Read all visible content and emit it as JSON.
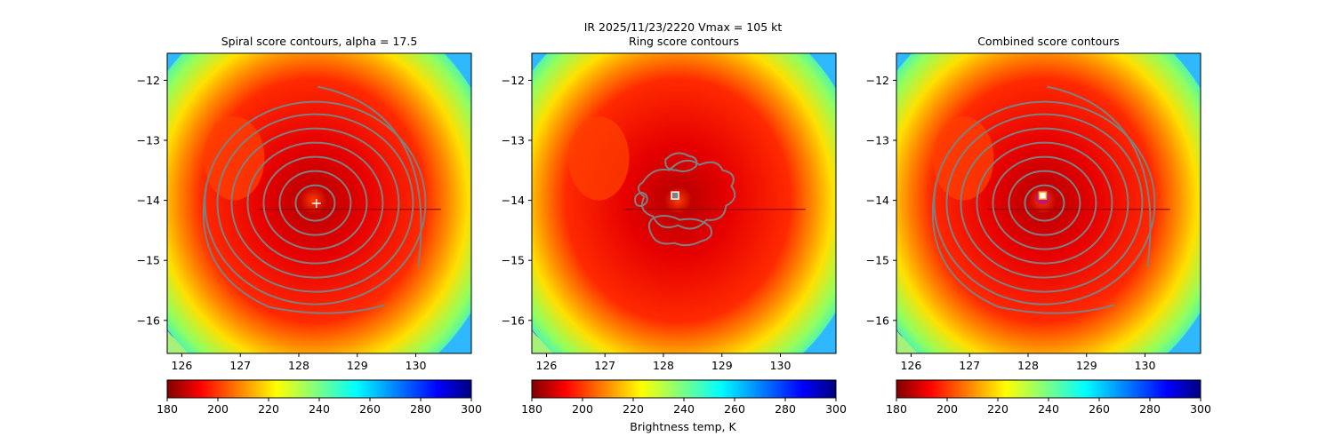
{
  "suptitle": "IR  2025/11/23/2220    Vmax = 105 kt",
  "colorbar_label": "Brightness temp, K",
  "chart_data": [
    {
      "type": "heatmap",
      "title": "Spiral score contours, alpha = 17.5",
      "xlim": [
        125.75,
        130.95
      ],
      "ylim": [
        -16.55,
        -11.55
      ],
      "xticks": [
        "126",
        "127",
        "128",
        "129",
        "130"
      ],
      "yticks": [
        "−12",
        "−13",
        "−14",
        "−15",
        "−16"
      ],
      "xtick_values": [
        126,
        127,
        128,
        129,
        130
      ],
      "ytick_values": [
        -12,
        -13,
        -14,
        -15,
        -16
      ],
      "center_marker": {
        "symbol": "+",
        "color": "#ffffff",
        "x": 128.3,
        "y": -14.05
      },
      "colorbar": {
        "min": 180,
        "max": 300,
        "ticks": [
          "180",
          "200",
          "220",
          "240",
          "260",
          "280",
          "300"
        ]
      },
      "field": "brightness_temperature_K",
      "contours": "spiral"
    },
    {
      "type": "heatmap",
      "title": "Ring score contours",
      "xlim": [
        125.75,
        130.95
      ],
      "ylim": [
        -16.55,
        -11.55
      ],
      "xticks": [
        "126",
        "127",
        "128",
        "129",
        "130"
      ],
      "yticks": [
        "−12",
        "−13",
        "−14",
        "−15",
        "−16"
      ],
      "xtick_values": [
        126,
        127,
        128,
        129,
        130
      ],
      "ytick_values": [
        -12,
        -13,
        -14,
        -15,
        -16
      ],
      "center_marker": {
        "symbol": "square",
        "color": "#ffffff",
        "x": 128.2,
        "y": -13.92
      },
      "colorbar": {
        "min": 180,
        "max": 300,
        "ticks": [
          "180",
          "200",
          "220",
          "240",
          "260",
          "280",
          "300"
        ]
      },
      "field": "brightness_temperature_K",
      "contours": "ring"
    },
    {
      "type": "heatmap",
      "title": "Combined score contours",
      "xlim": [
        125.75,
        130.95
      ],
      "ylim": [
        -16.55,
        -11.55
      ],
      "xticks": [
        "126",
        "127",
        "128",
        "129",
        "130"
      ],
      "yticks": [
        "−12",
        "−13",
        "−14",
        "−15",
        "−16"
      ],
      "xtick_values": [
        126,
        127,
        128,
        129,
        130
      ],
      "ytick_values": [
        -12,
        -13,
        -14,
        -15,
        -16
      ],
      "center_marker": {
        "symbol": "square",
        "color": "#ffa500",
        "x": 128.25,
        "y": -13.92
      },
      "colorbar": {
        "min": 180,
        "max": 300,
        "ticks": [
          "180",
          "200",
          "220",
          "240",
          "260",
          "280",
          "300"
        ]
      },
      "field": "brightness_temperature_K",
      "contours": "spiral"
    }
  ]
}
